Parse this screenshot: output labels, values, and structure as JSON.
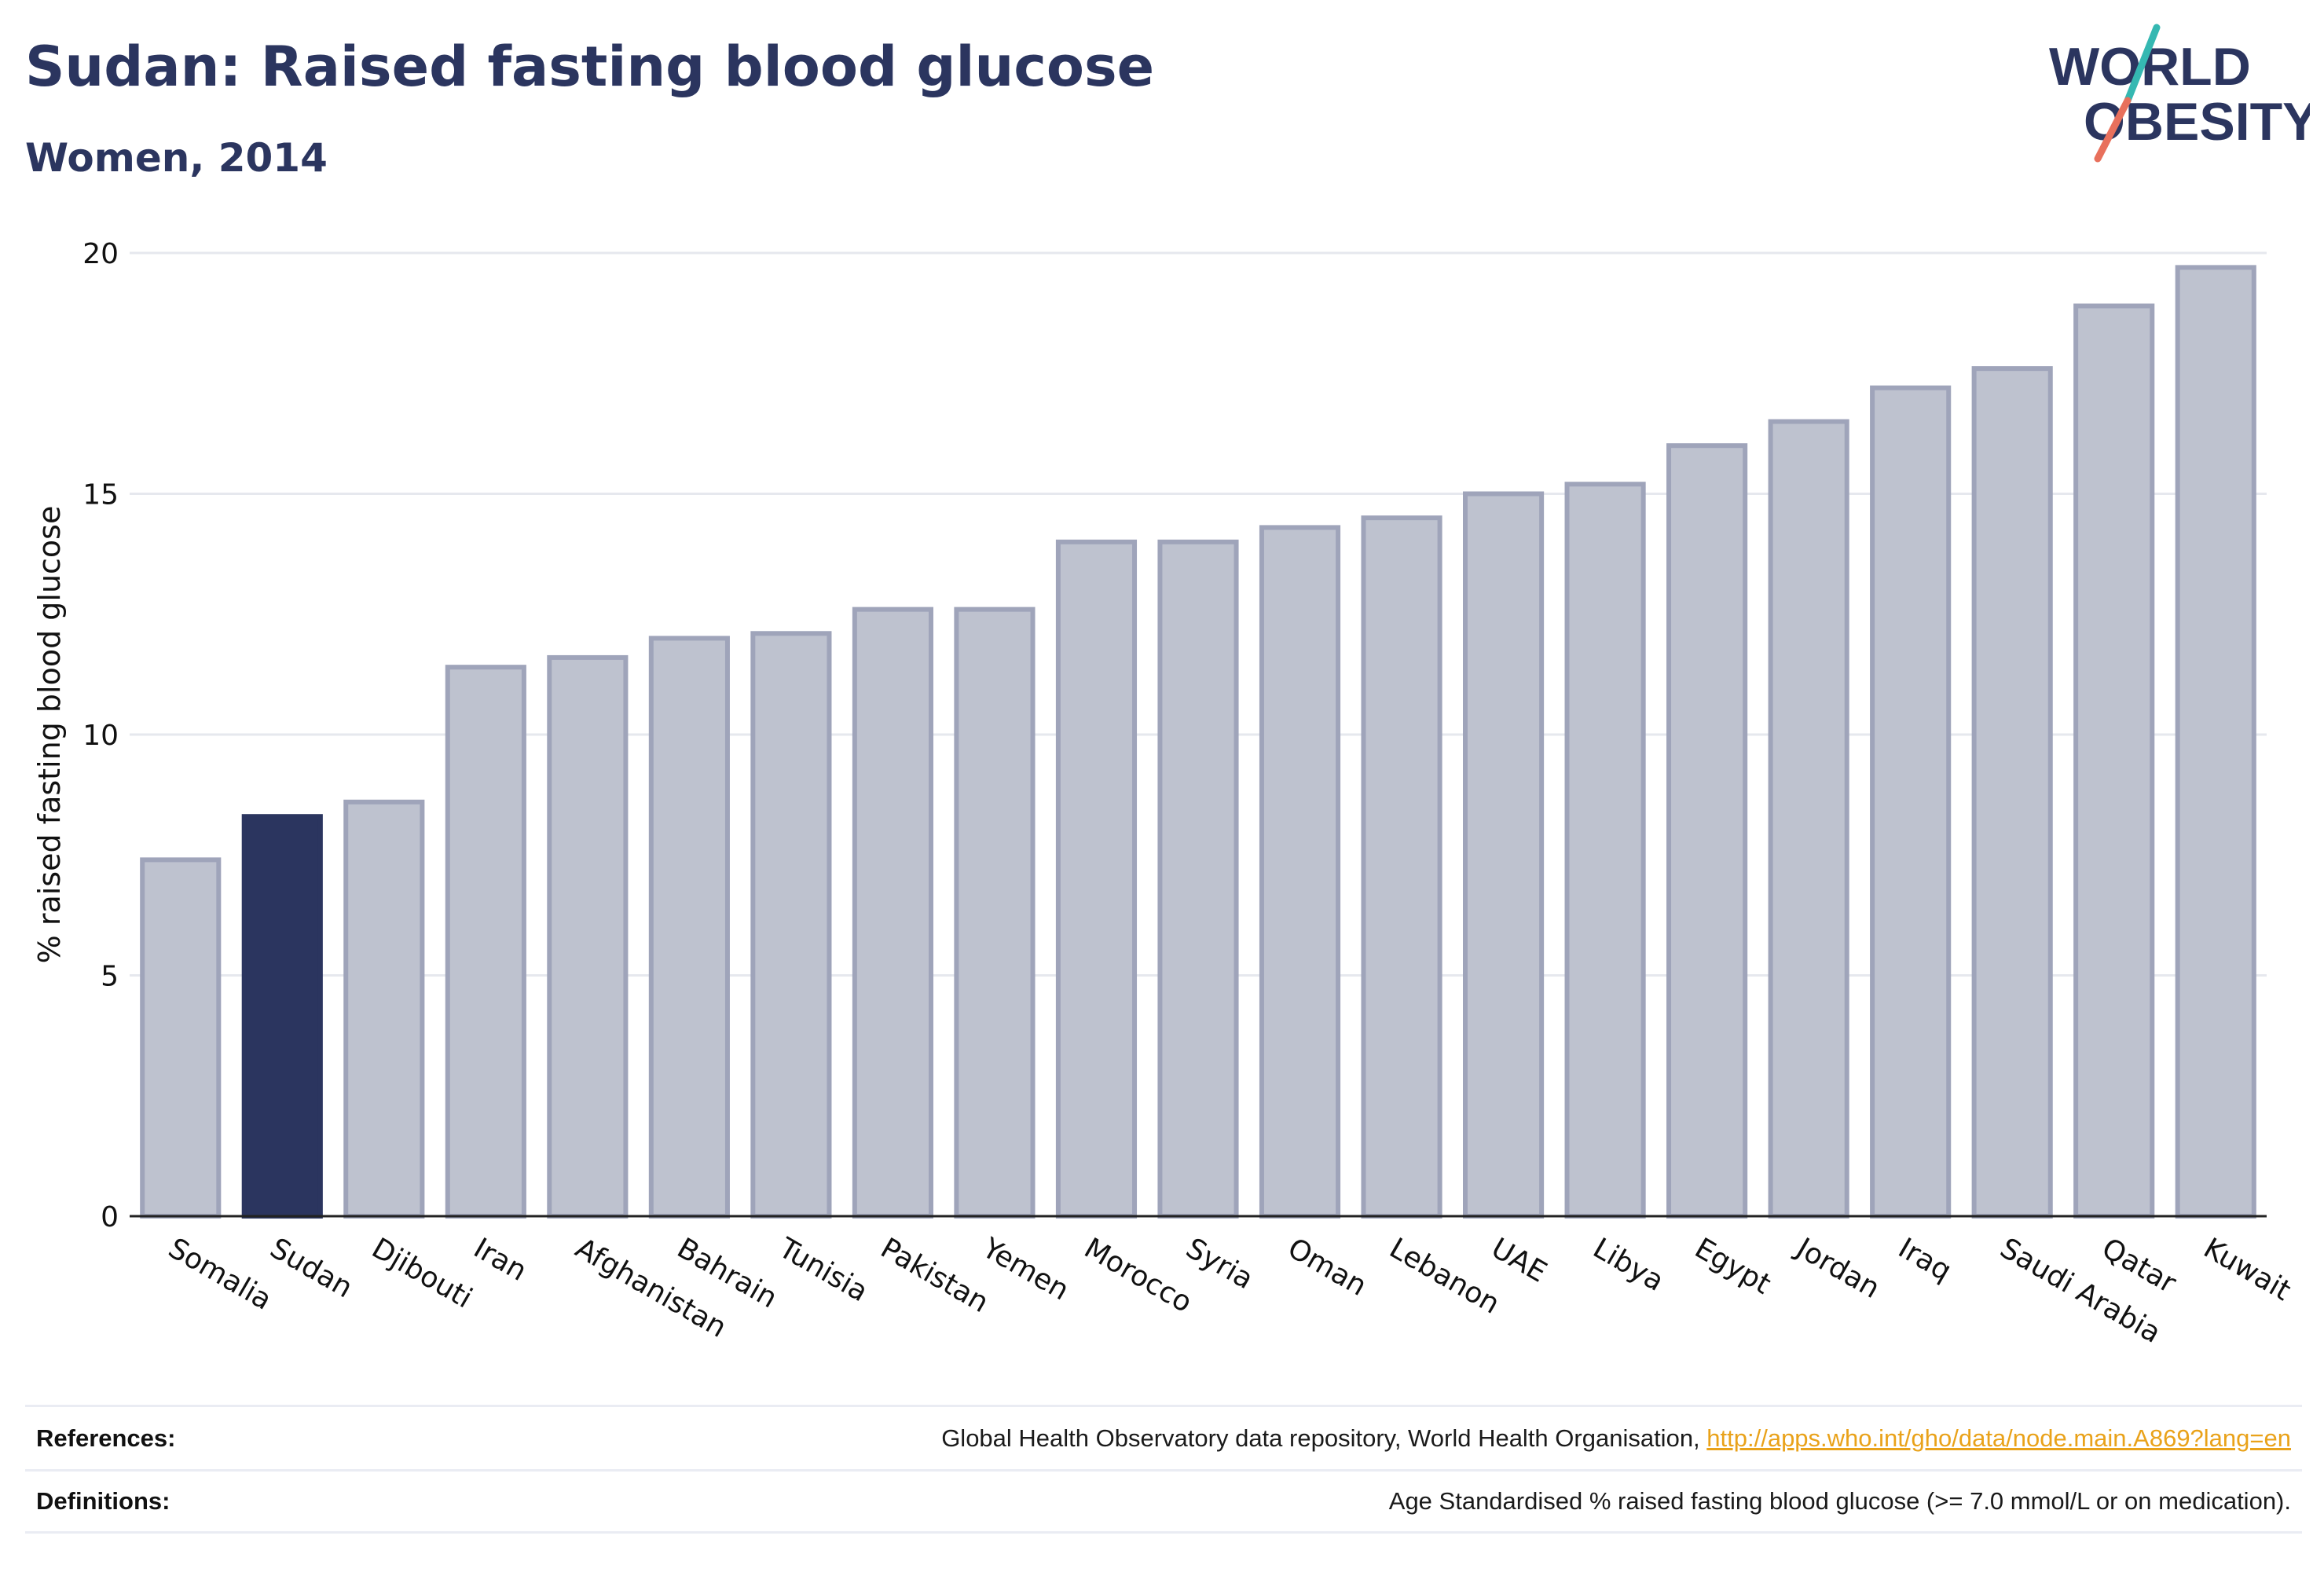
{
  "header": {
    "title": "Sudan: Raised fasting blood glucose",
    "subtitle": "Women, 2014"
  },
  "logo": {
    "line1": "WORLD",
    "line2": "OBESITY",
    "accent_teal": "#35b8b2",
    "accent_coral": "#e8705c"
  },
  "chart_data": {
    "type": "bar",
    "ylabel": "% raised fasting blood glucose",
    "xlabel": "",
    "ylim": [
      0,
      20
    ],
    "yticks": [
      0,
      5,
      10,
      15,
      20
    ],
    "grid": true,
    "highlight": "Sudan",
    "highlight_color": "#2b355f",
    "bar_color": "#bec2cf",
    "bar_edge_color": "#9fa4ba",
    "categories": [
      "Somalia",
      "Sudan",
      "Djibouti",
      "Iran",
      "Afghanistan",
      "Bahrain",
      "Tunisia",
      "Pakistan",
      "Yemen",
      "Morocco",
      "Syria",
      "Oman",
      "Lebanon",
      "UAE",
      "Libya",
      "Egypt",
      "Jordan",
      "Iraq",
      "Saudi Arabia",
      "Qatar",
      "Kuwait"
    ],
    "values": [
      7.4,
      8.3,
      8.6,
      11.4,
      11.6,
      12.0,
      12.1,
      12.6,
      12.6,
      14.0,
      14.0,
      14.3,
      14.5,
      15.0,
      15.2,
      16.0,
      16.5,
      17.2,
      17.6,
      18.9,
      19.7
    ]
  },
  "footer": {
    "references_label": "References:",
    "references_text": "Global Health Observatory data repository, World Health Organisation, ",
    "references_link": "http://apps.who.int/gho/data/node.main.A869?lang=en",
    "definitions_label": "Definitions:",
    "definitions_text": "Age Standardised % raised fasting blood glucose (>= 7.0 mmol/L or on medication)."
  }
}
